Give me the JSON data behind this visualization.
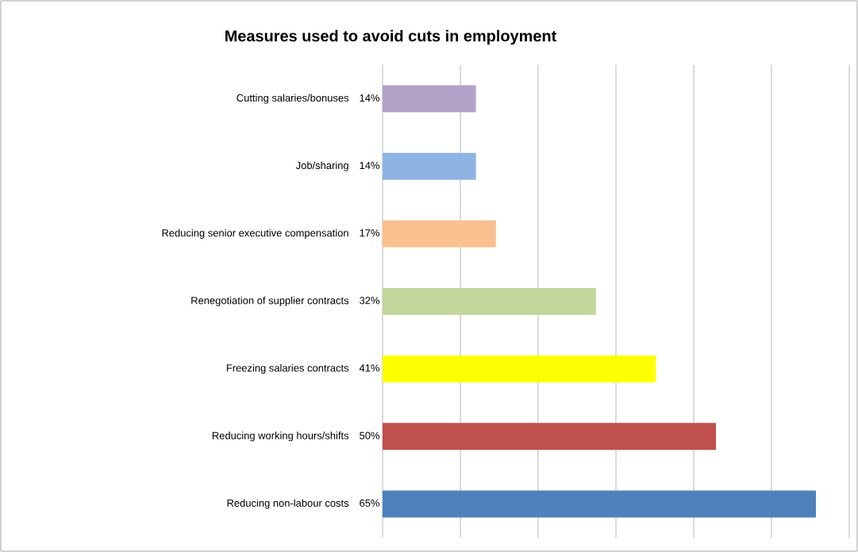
{
  "chart_data": {
    "type": "bar",
    "orientation": "horizontal",
    "title": "Measures used to avoid cuts in employment",
    "categories": [
      "Cutting salaries/bonuses",
      "Job/sharing",
      "Reducing senior executive compensation",
      "Renegotiation of supplier contracts",
      "Freezing salaries contracts",
      "Reducing working hours/shifts",
      "Reducing non-labour costs"
    ],
    "values": [
      14,
      14,
      17,
      32,
      41,
      50,
      65
    ],
    "value_labels": [
      "14%",
      "14%",
      "17%",
      "32%",
      "41%",
      "50%",
      "65%"
    ],
    "colors": [
      "#b3a2c7",
      "#8eb4e3",
      "#fac090",
      "#c3d69b",
      "#ffff00",
      "#c0504d",
      "#4f81bd"
    ],
    "xlim": [
      0,
      70
    ],
    "xticks": [
      {
        "value": 0,
        "label": null
      },
      {
        "value": 11.67,
        "label": null
      },
      {
        "value": 23.33,
        "label": null
      },
      {
        "value": 35,
        "label": null
      },
      {
        "value": 46.67,
        "label": null
      },
      {
        "value": 58.33,
        "label": null
      },
      {
        "value": 70,
        "label": null
      }
    ],
    "grid": "x"
  }
}
